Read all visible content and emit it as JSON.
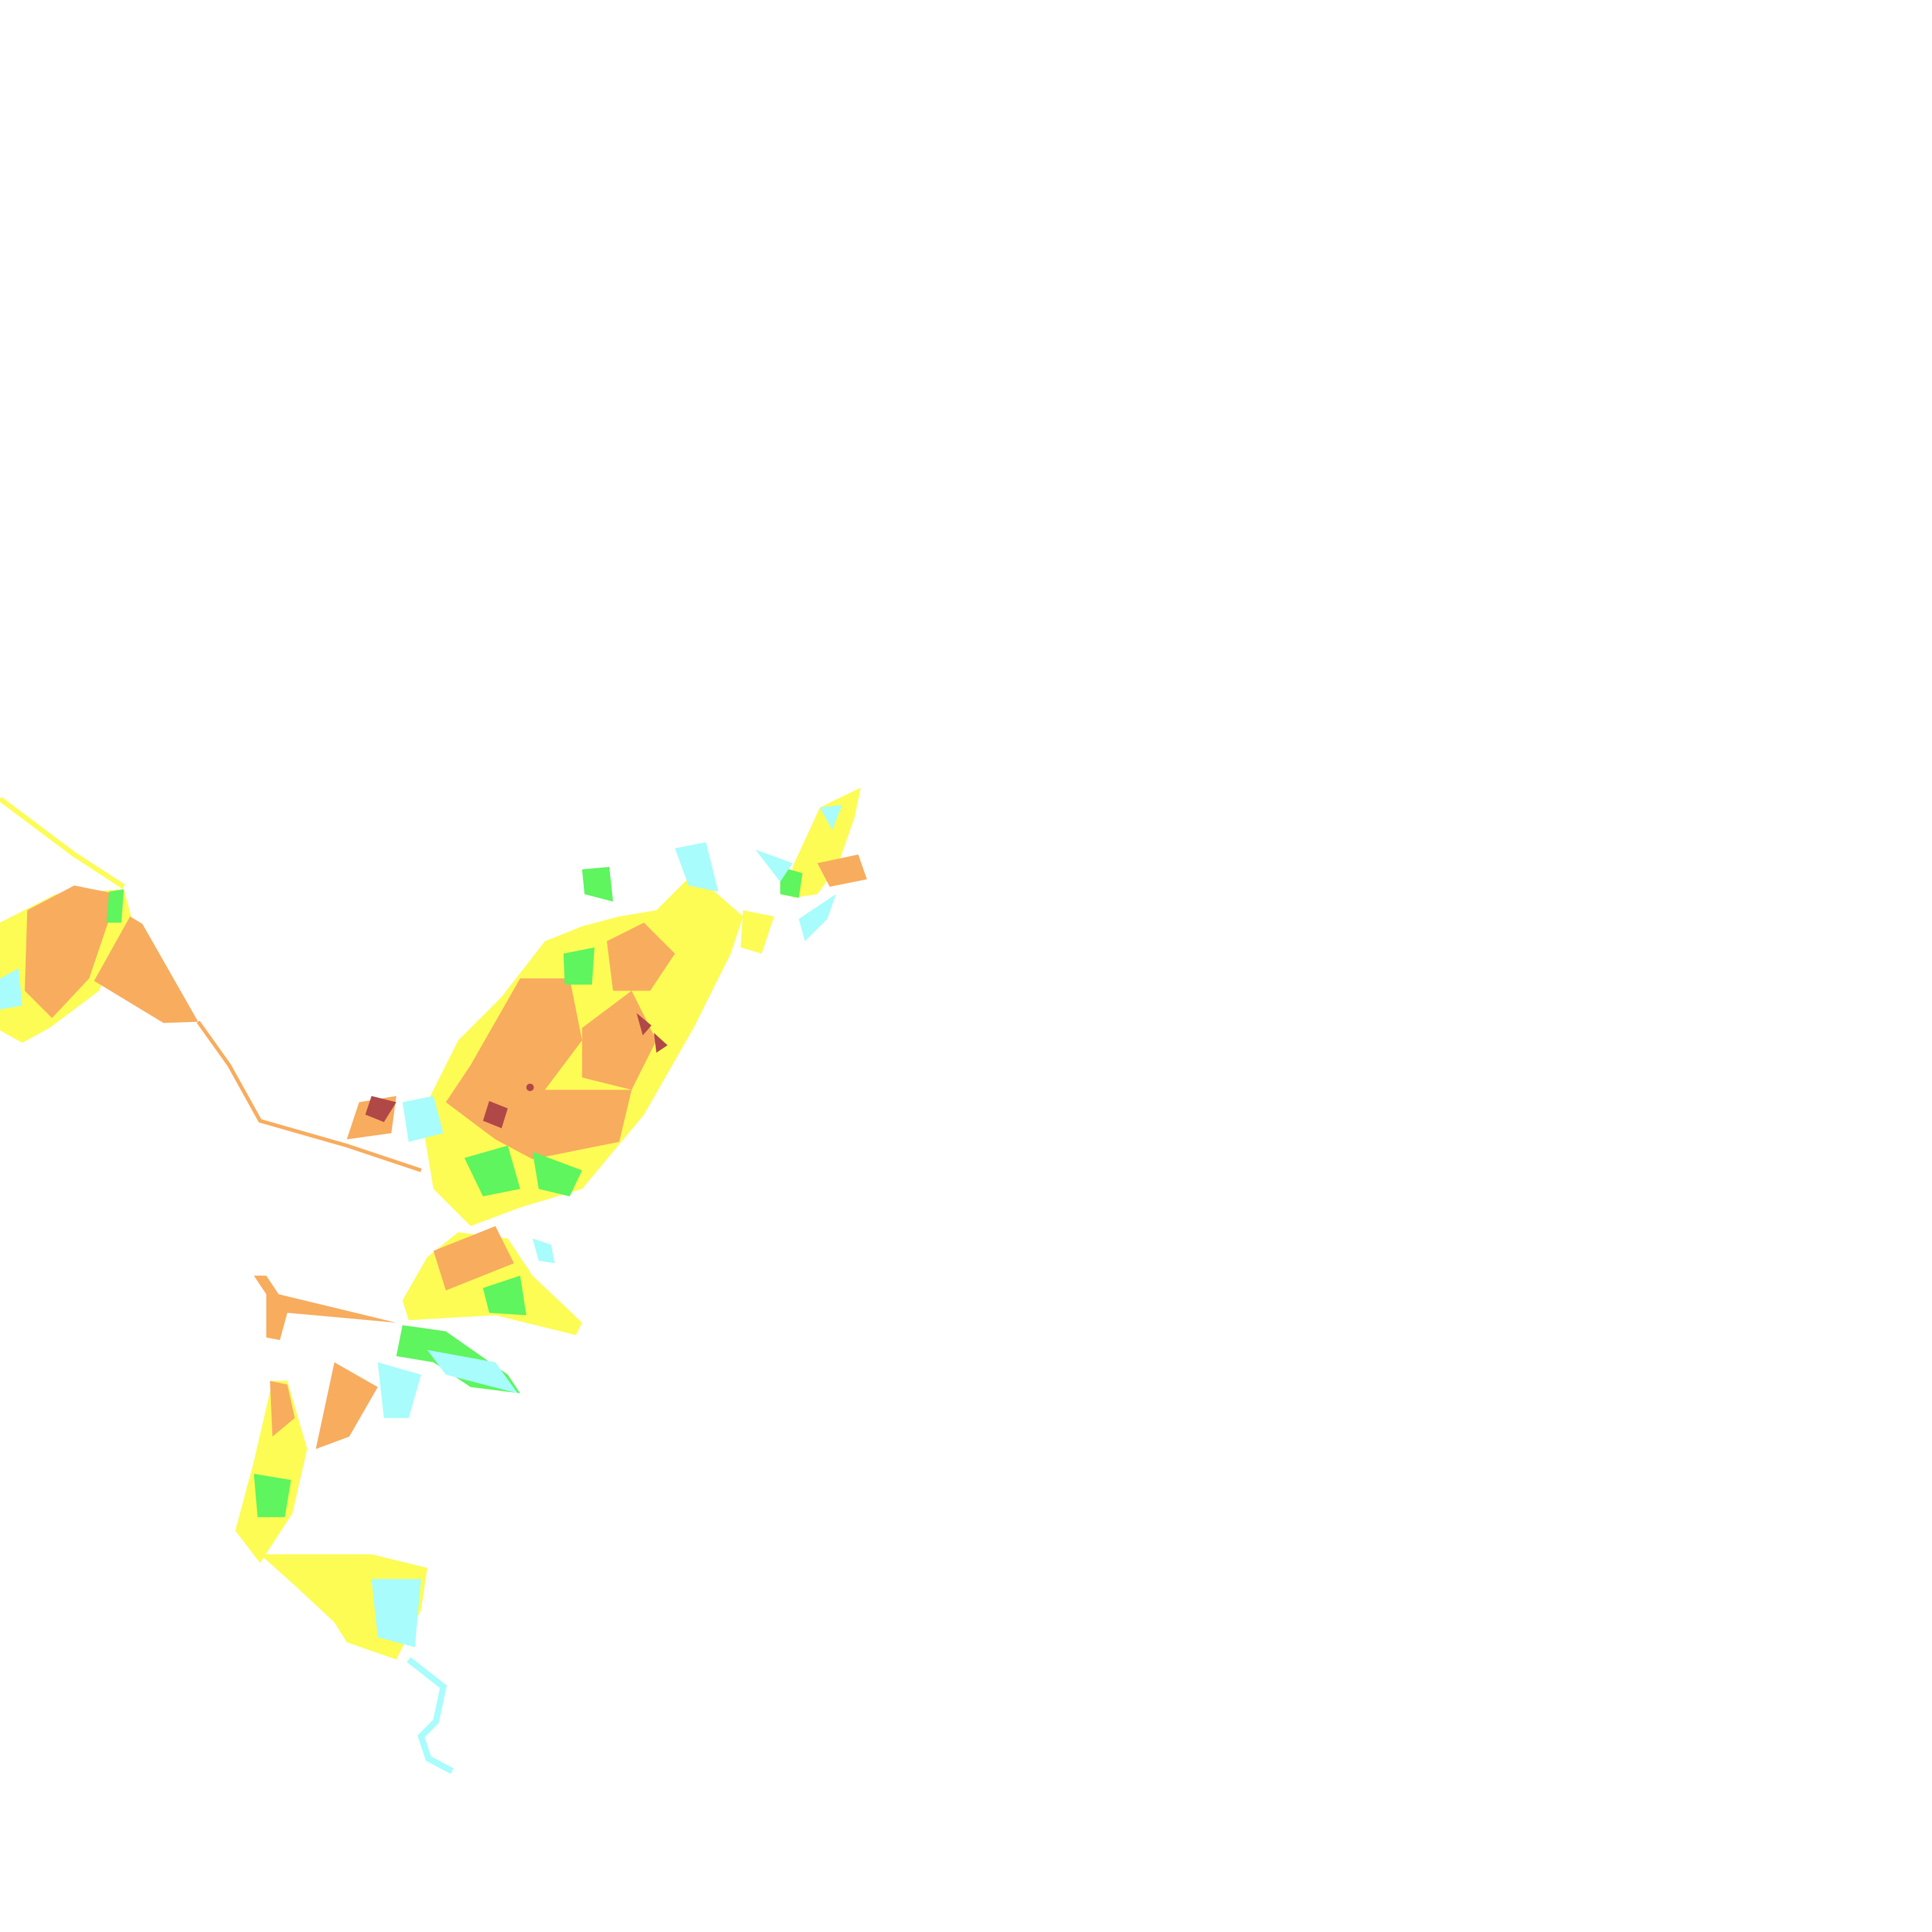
{
  "map": {
    "background": "#ffffff",
    "classes": [
      {
        "key": "water",
        "color": "#a8fcfc"
      },
      {
        "key": "green",
        "color": "#5ef55e"
      },
      {
        "key": "yellow",
        "color": "#fcfc55"
      },
      {
        "key": "orange",
        "color": "#f8ac5e"
      },
      {
        "key": "darkred",
        "color": "#b04848"
      }
    ]
  }
}
